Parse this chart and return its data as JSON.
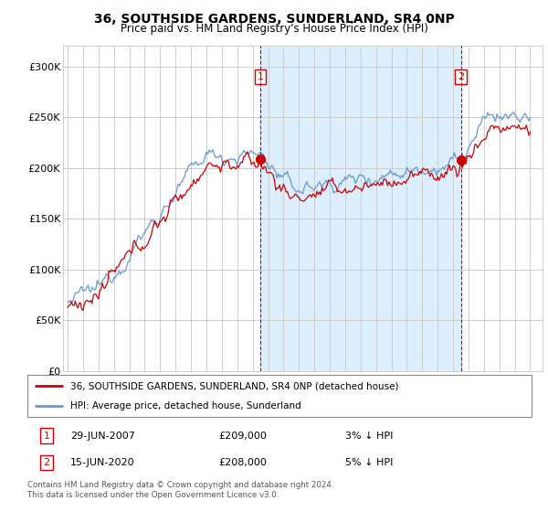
{
  "title": "36, SOUTHSIDE GARDENS, SUNDERLAND, SR4 0NP",
  "subtitle": "Price paid vs. HM Land Registry's House Price Index (HPI)",
  "legend_line1": "36, SOUTHSIDE GARDENS, SUNDERLAND, SR4 0NP (detached house)",
  "legend_line2": "HPI: Average price, detached house, Sunderland",
  "annotation1_date": "29-JUN-2007",
  "annotation1_price": "£209,000",
  "annotation1_hpi": "3% ↓ HPI",
  "annotation2_date": "15-JUN-2020",
  "annotation2_price": "£208,000",
  "annotation2_hpi": "5% ↓ HPI",
  "footer": "Contains HM Land Registry data © Crown copyright and database right 2024.\nThis data is licensed under the Open Government Licence v3.0.",
  "hpi_color": "#6699cc",
  "hpi_fill_color": "#ddeeff",
  "price_color": "#cc0000",
  "annotation_color": "#cc0000",
  "background_color": "#ffffff",
  "grid_color": "#cccccc",
  "ylim": [
    0,
    320000
  ],
  "yticks": [
    0,
    50000,
    100000,
    150000,
    200000,
    250000,
    300000
  ],
  "ytick_labels": [
    "£0",
    "£50K",
    "£100K",
    "£150K",
    "£200K",
    "£250K",
    "£300K"
  ],
  "ann1_x": 2007.5,
  "ann1_y": 209000,
  "ann2_x": 2020.5,
  "ann2_y": 208000,
  "xlim_left": 1994.7,
  "xlim_right": 2025.8
}
